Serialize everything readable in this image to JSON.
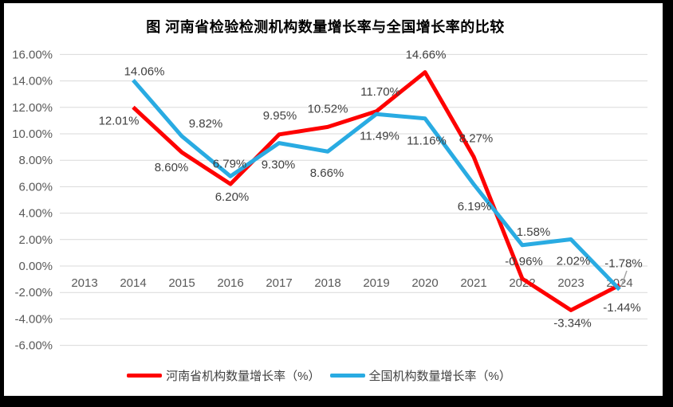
{
  "title": "图  河南省检验检测机构数量增长率与全国增长率的比较",
  "chart_data": {
    "type": "line",
    "title": "图  河南省检验检测机构数量增长率与全国增长率的比较",
    "categories": [
      "2013",
      "2014",
      "2015",
      "2016",
      "2017",
      "2018",
      "2019",
      "2020",
      "2021",
      "2022",
      "2023",
      "2024"
    ],
    "series": [
      {
        "name": "河南省机构数量增长率（%）",
        "color": "#FE0000",
        "values": [
          null,
          12.01,
          8.6,
          6.2,
          9.95,
          10.52,
          11.7,
          14.66,
          8.27,
          -0.96,
          -3.34,
          -1.44
        ]
      },
      {
        "name": "全国机构数量增长率（%）",
        "color": "#29ABE2",
        "values": [
          null,
          14.06,
          9.82,
          6.79,
          9.3,
          8.66,
          11.49,
          11.16,
          6.19,
          1.58,
          2.02,
          -1.78
        ]
      }
    ],
    "ylim": [
      -6,
      16
    ],
    "ytick_step": 2,
    "ytick_labels": [
      "-6.00%",
      "-4.00%",
      "-2.00%",
      "0.00%",
      "2.00%",
      "4.00%",
      "6.00%",
      "8.00%",
      "10.00%",
      "12.00%",
      "14.00%",
      "16.00%"
    ],
    "grid": true,
    "legend_position": "bottom",
    "data_label_format": "0.00%",
    "axis_color": "#595959",
    "gridline_color": "#D9D9D9",
    "label_color": "#404040",
    "leader_line_color": "#A6A6A6"
  }
}
